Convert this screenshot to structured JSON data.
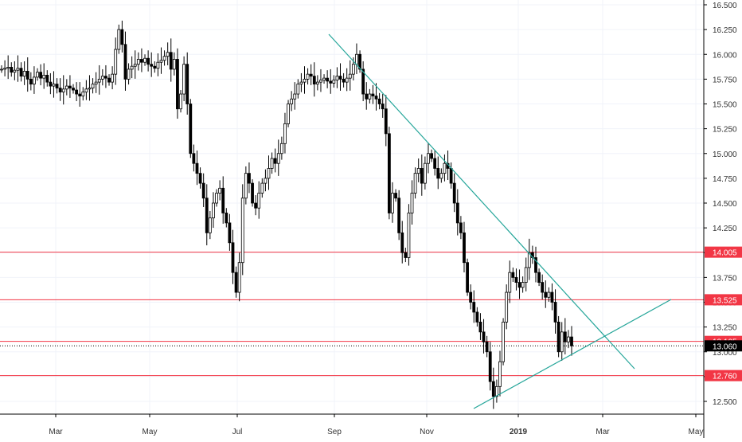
{
  "chart_data": {
    "type": "candlestick",
    "x_axis": {
      "tick_labels": [
        "Mar",
        "May",
        "Jul",
        "Sep",
        "Nov",
        "2019",
        "Mar",
        "May"
      ]
    },
    "y_axis": {
      "position": "right",
      "range": [
        12.4,
        16.56
      ],
      "tick_values": [
        16.5,
        16.25,
        16.0,
        15.75,
        15.5,
        15.25,
        15.0,
        14.75,
        14.5,
        14.25,
        14.0,
        13.75,
        13.5,
        13.25,
        13.0,
        12.75,
        12.5
      ],
      "tick_labels": [
        "16.500",
        "16.250",
        "16.000",
        "15.750",
        "15.500",
        "15.250",
        "15.000",
        "14.750",
        "14.500",
        "14.250",
        "14.000",
        "13.750",
        "13.500",
        "13.250",
        "13.000",
        "12.750",
        "12.500"
      ]
    },
    "horizontal_levels": [
      {
        "value": 14.005,
        "label": "14.005",
        "color": "#f23645"
      },
      {
        "value": 13.525,
        "label": "13.525",
        "color": "#f23645"
      },
      {
        "value": 13.105,
        "label": "13.105",
        "color": "#f23645"
      },
      {
        "value": 12.76,
        "label": "12.760",
        "color": "#f23645"
      }
    ],
    "last_price": {
      "value": 13.06,
      "label": "13.060",
      "color": "#000000"
    },
    "trendlines": [
      {
        "name": "resistance",
        "color": "#26a69a",
        "from": [
          16.2
        ],
        "to": [
          12.75
        ]
      },
      {
        "name": "support",
        "color": "#26a69a",
        "from": [
          12.42
        ],
        "to": [
          13.52
        ]
      }
    ],
    "candles_close": [
      15.85,
      15.86,
      15.87,
      15.82,
      15.84,
      15.86,
      15.78,
      15.83,
      15.75,
      15.7,
      15.77,
      15.82,
      15.76,
      15.79,
      15.72,
      15.68,
      15.7,
      15.66,
      15.62,
      15.65,
      15.68,
      15.66,
      15.64,
      15.6,
      15.58,
      15.62,
      15.65,
      15.66,
      15.7,
      15.72,
      15.75,
      15.78,
      15.76,
      15.72,
      15.8,
      16.05,
      16.25,
      16.1,
      15.75,
      15.85,
      15.88,
      15.9,
      15.95,
      15.92,
      15.96,
      15.9,
      15.88,
      15.86,
      15.92,
      15.94,
      15.98,
      16.02,
      15.85,
      15.95,
      15.45,
      15.6,
      15.9,
      15.5,
      15.0,
      14.9,
      14.8,
      14.7,
      14.55,
      14.2,
      14.35,
      14.5,
      14.6,
      14.65,
      14.4,
      14.3,
      14.1,
      13.8,
      13.6,
      13.9,
      14.55,
      14.8,
      14.7,
      14.5,
      14.45,
      14.6,
      14.7,
      14.75,
      14.85,
      14.95,
      14.9,
      15.0,
      15.1,
      15.3,
      15.5,
      15.55,
      15.6,
      15.7,
      15.72,
      15.75,
      15.8,
      15.78,
      15.7,
      15.72,
      15.74,
      15.76,
      15.73,
      15.71,
      15.74,
      15.78,
      15.75,
      15.72,
      15.76,
      15.8,
      15.9,
      16.0,
      15.85,
      15.6,
      15.55,
      15.6,
      15.58,
      15.55,
      15.5,
      15.45,
      15.2,
      14.4,
      14.6,
      14.55,
      14.2,
      14.0,
      13.95,
      14.4,
      14.6,
      14.8,
      14.85,
      14.7,
      14.9,
      15.0,
      14.95,
      14.85,
      14.75,
      14.8,
      14.9,
      14.85,
      14.7,
      14.5,
      14.3,
      14.2,
      13.9,
      13.6,
      13.5,
      13.4,
      13.3,
      13.2,
      13.1,
      13.0,
      12.7,
      12.55,
      12.65,
      12.9,
      13.3,
      13.6,
      13.8,
      13.75,
      13.7,
      13.65,
      13.7,
      13.85,
      14.0,
      13.95,
      13.8,
      13.7,
      13.6,
      13.55,
      13.6,
      13.5,
      13.3,
      13.0,
      13.2,
      13.1,
      13.15,
      13.06
    ]
  }
}
